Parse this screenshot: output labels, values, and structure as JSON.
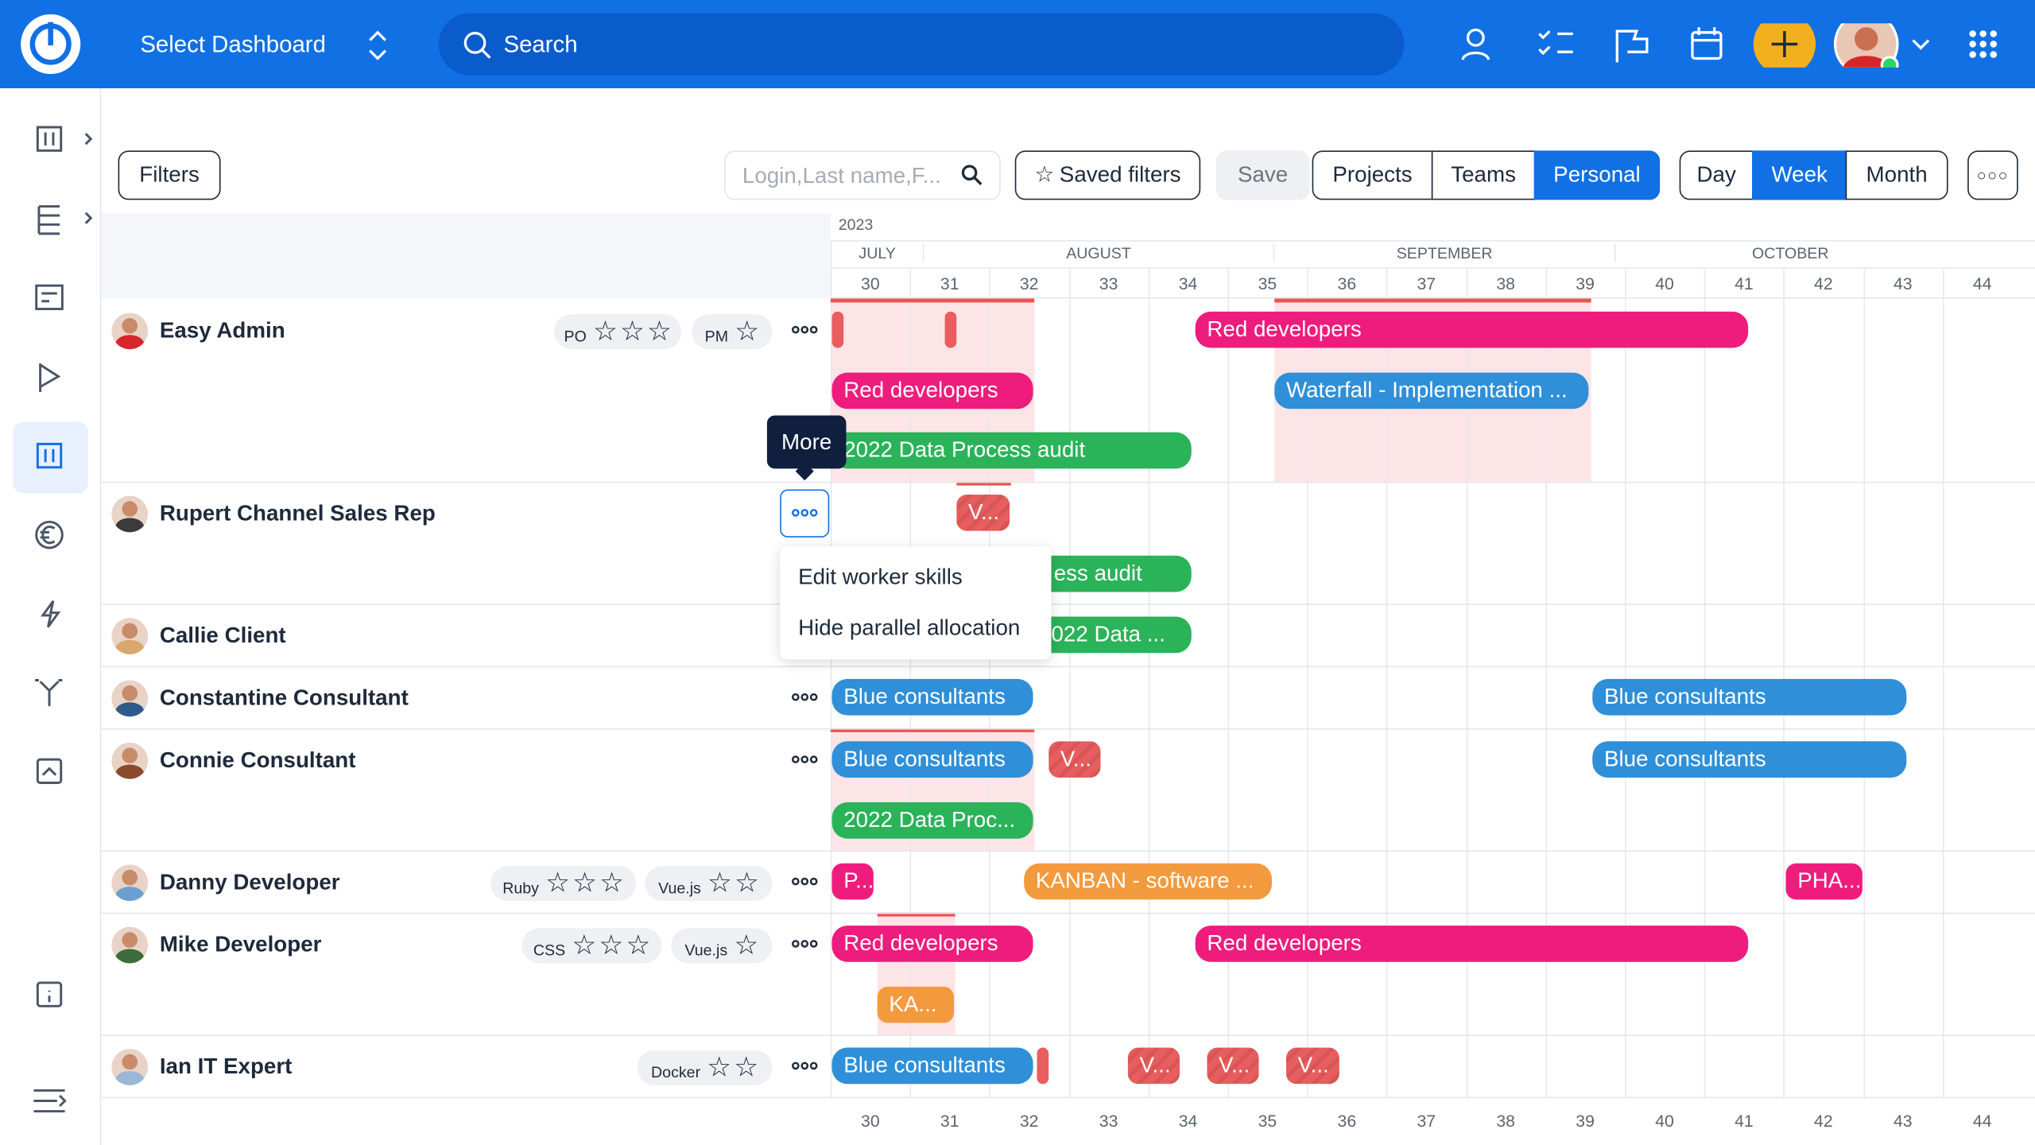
{
  "header": {
    "dashboard": "Select Dashboard",
    "search": "Search"
  },
  "toolbar": {
    "filters": "Filters",
    "search_placeholder": "Login,Last name,F...",
    "saved_filters": "Saved filters",
    "save": "Save",
    "view_tabs": [
      "Projects",
      "Teams",
      "Personal"
    ],
    "scale_tabs": [
      "Day",
      "Week",
      "Month"
    ]
  },
  "timeline": {
    "year": "2023",
    "months": [
      "JULY",
      "AUGUST",
      "SEPTEMBER",
      "OCTOBER"
    ],
    "weeks": [
      30,
      31,
      32,
      33,
      34,
      35,
      36,
      37,
      38,
      39,
      40,
      41,
      42,
      43,
      44
    ]
  },
  "people": [
    {
      "name": "Easy Admin",
      "skills": [
        {
          "name": "PO",
          "stars": 3
        },
        {
          "name": "PM",
          "stars": 1
        }
      ],
      "bars": [
        {
          "color": "#e85d5d"
        },
        {
          "color": "#e85d5d"
        },
        {
          "label": "Red developers",
          "color": "#ee1c7d"
        },
        {
          "label": "Red developers",
          "color": "#ee1c7d"
        },
        {
          "label": "Waterfall - Implementation ...",
          "color": "#2f8fd8"
        },
        {
          "label": "2022 Data Process audit",
          "color": "#2bb35a"
        }
      ]
    },
    {
      "name": "Rupert Channel Sales Rep",
      "skills": [],
      "bars": [
        {
          "label": "V...",
          "color": "#e85d5d",
          "hatched": true
        },
        {
          "label": "ess audit",
          "color": "#2bb35a"
        }
      ]
    },
    {
      "name": "Callie Client",
      "skills": [],
      "bars": [
        {
          "label": "022 Data ...",
          "color": "#2bb35a"
        }
      ]
    },
    {
      "name": "Constantine Consultant",
      "skills": [],
      "bars": [
        {
          "label": "Blue consultants",
          "color": "#2f8fd8"
        },
        {
          "label": "Blue consultants",
          "color": "#2f8fd8"
        }
      ]
    },
    {
      "name": "Connie Consultant",
      "skills": [],
      "bars": [
        {
          "label": "Blue consultants",
          "color": "#2f8fd8"
        },
        {
          "label": "V...",
          "color": "#e85d5d",
          "hatched": true
        },
        {
          "label": "Blue consultants",
          "color": "#2f8fd8"
        },
        {
          "label": "2022 Data Proc...",
          "color": "#2bb35a"
        }
      ]
    },
    {
      "name": "Danny Developer",
      "skills": [
        {
          "name": "Ruby",
          "stars": 3
        },
        {
          "name": "Vue.js",
          "stars": 2
        }
      ],
      "bars": [
        {
          "label": "P...",
          "color": "#ee1c7d"
        },
        {
          "label": "KANBAN - software ...",
          "color": "#f39a3e"
        },
        {
          "label": "PHA...",
          "color": "#ee1c7d"
        }
      ]
    },
    {
      "name": "Mike Developer",
      "skills": [
        {
          "name": "CSS",
          "stars": 3
        },
        {
          "name": "Vue.js",
          "stars": 1
        }
      ],
      "bars": [
        {
          "label": "Red developers",
          "color": "#ee1c7d"
        },
        {
          "label": "Red developers",
          "color": "#ee1c7d"
        },
        {
          "label": "KA...",
          "color": "#f39a3e"
        }
      ]
    },
    {
      "name": "Ian IT Expert",
      "skills": [
        {
          "name": "Docker",
          "stars": 2
        }
      ],
      "bars": [
        {
          "label": "Blue consultants",
          "color": "#2f8fd8"
        },
        {
          "color": "#e85d5d"
        },
        {
          "label": "V...",
          "color": "#e85d5d",
          "hatched": true
        },
        {
          "label": "V...",
          "color": "#e85d5d",
          "hatched": true
        },
        {
          "label": "V...",
          "color": "#e85d5d",
          "hatched": true
        }
      ]
    }
  ],
  "tooltip": "More",
  "menu": [
    "Edit worker skills",
    "Hide parallel allocation"
  ]
}
